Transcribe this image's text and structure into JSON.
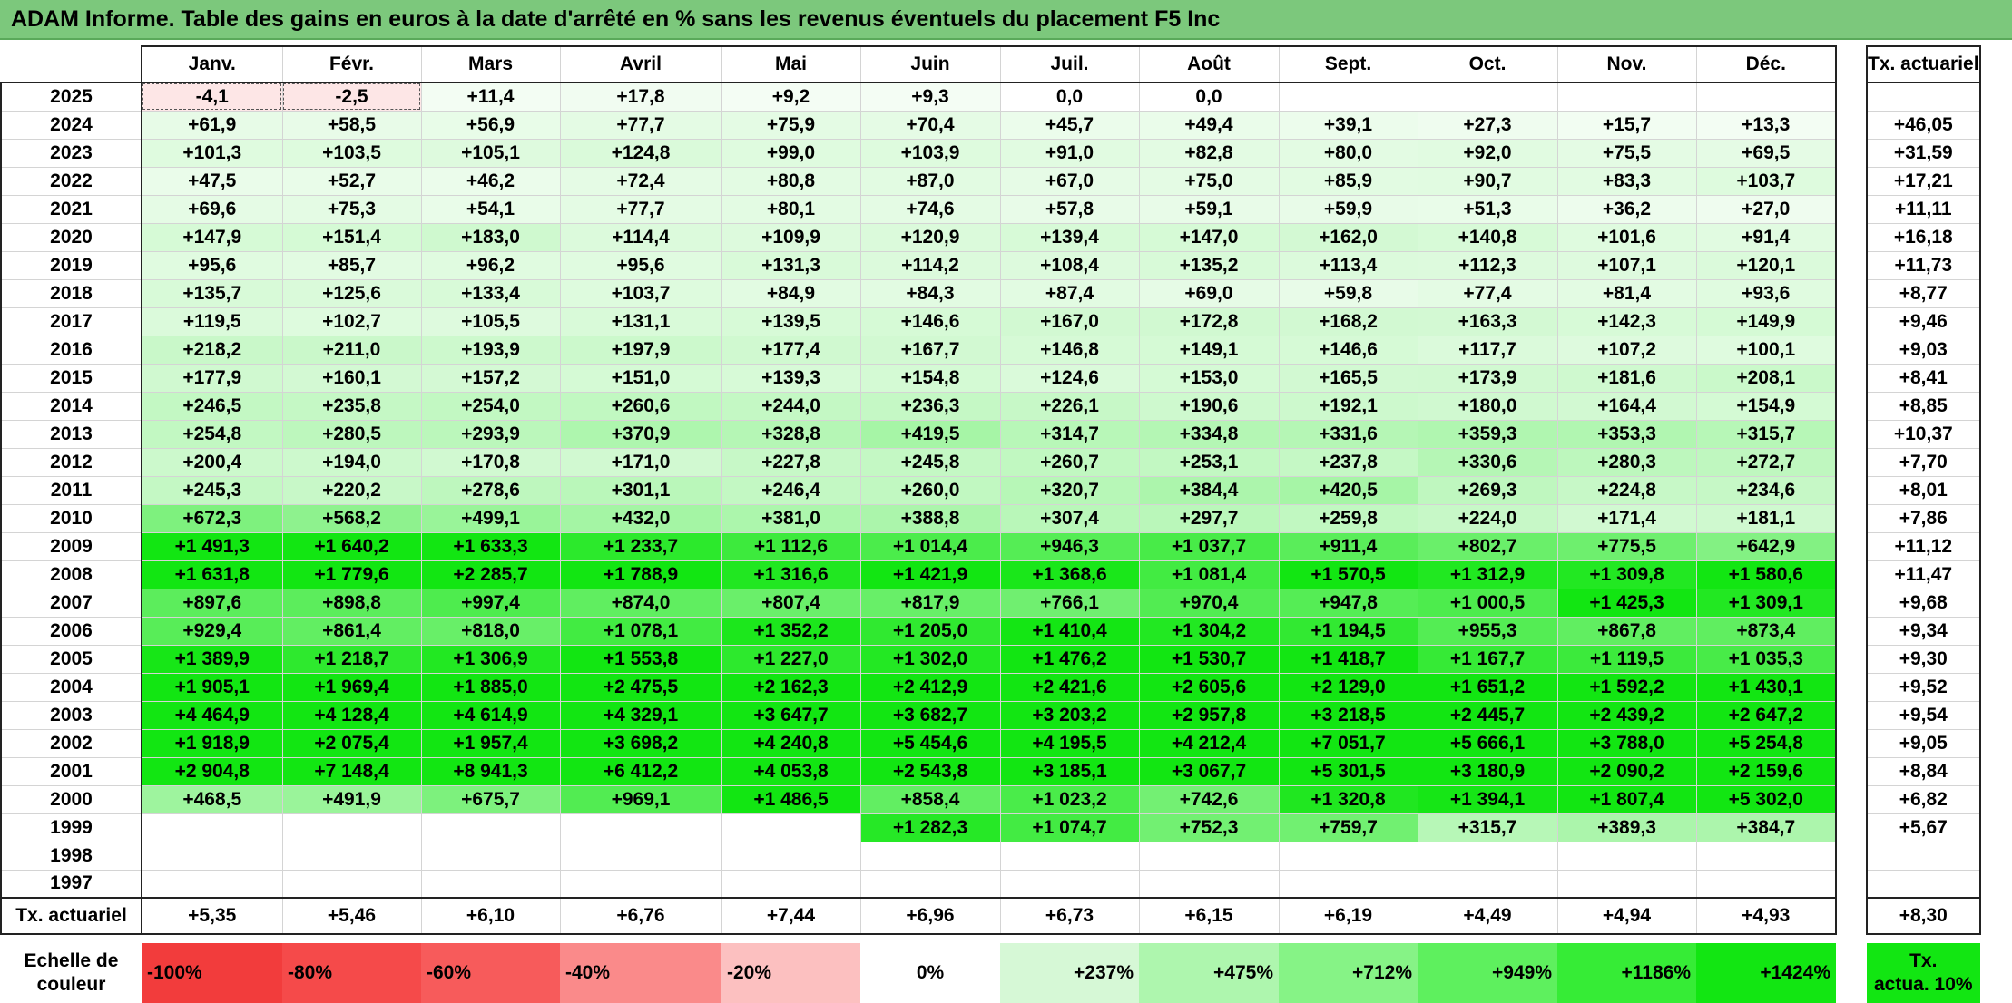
{
  "title": "ADAM Informe. Table des gains en euros à la date d'arrêté en % sans les revenus éventuels du placement F5 Inc",
  "months": [
    "Janv.",
    "Févr.",
    "Mars",
    "Avril",
    "Mai",
    "Juin",
    "Juil.",
    "Août",
    "Sept.",
    "Oct.",
    "Nov.",
    "Déc."
  ],
  "annual_header": "Tx. actuariel",
  "rows": [
    {
      "year": "2025",
      "values": [
        "-4,1",
        "-2,5",
        "+11,4",
        "+17,8",
        "+9,2",
        "+9,3",
        "0,0",
        "0,0",
        "",
        "",
        "",
        ""
      ],
      "annual": ""
    },
    {
      "year": "2024",
      "values": [
        "+61,9",
        "+58,5",
        "+56,9",
        "+77,7",
        "+75,9",
        "+70,4",
        "+45,7",
        "+49,4",
        "+39,1",
        "+27,3",
        "+15,7",
        "+13,3"
      ],
      "annual": "+46,05"
    },
    {
      "year": "2023",
      "values": [
        "+101,3",
        "+103,5",
        "+105,1",
        "+124,8",
        "+99,0",
        "+103,9",
        "+91,0",
        "+82,8",
        "+80,0",
        "+92,0",
        "+75,5",
        "+69,5"
      ],
      "annual": "+31,59"
    },
    {
      "year": "2022",
      "values": [
        "+47,5",
        "+52,7",
        "+46,2",
        "+72,4",
        "+80,8",
        "+87,0",
        "+67,0",
        "+75,0",
        "+85,9",
        "+90,7",
        "+83,3",
        "+103,7"
      ],
      "annual": "+17,21"
    },
    {
      "year": "2021",
      "values": [
        "+69,6",
        "+75,3",
        "+54,1",
        "+77,7",
        "+80,1",
        "+74,6",
        "+57,8",
        "+59,1",
        "+59,9",
        "+51,3",
        "+36,2",
        "+27,0"
      ],
      "annual": "+11,11"
    },
    {
      "year": "2020",
      "values": [
        "+147,9",
        "+151,4",
        "+183,0",
        "+114,4",
        "+109,9",
        "+120,9",
        "+139,4",
        "+147,0",
        "+162,0",
        "+140,8",
        "+101,6",
        "+91,4"
      ],
      "annual": "+16,18"
    },
    {
      "year": "2019",
      "values": [
        "+95,6",
        "+85,7",
        "+96,2",
        "+95,6",
        "+131,3",
        "+114,2",
        "+108,4",
        "+135,2",
        "+113,4",
        "+112,3",
        "+107,1",
        "+120,1"
      ],
      "annual": "+11,73"
    },
    {
      "year": "2018",
      "values": [
        "+135,7",
        "+125,6",
        "+133,4",
        "+103,7",
        "+84,9",
        "+84,3",
        "+87,4",
        "+69,0",
        "+59,8",
        "+77,4",
        "+81,4",
        "+93,6"
      ],
      "annual": "+8,77"
    },
    {
      "year": "2017",
      "values": [
        "+119,5",
        "+102,7",
        "+105,5",
        "+131,1",
        "+139,5",
        "+146,6",
        "+167,0",
        "+172,8",
        "+168,2",
        "+163,3",
        "+142,3",
        "+149,9"
      ],
      "annual": "+9,46"
    },
    {
      "year": "2016",
      "values": [
        "+218,2",
        "+211,0",
        "+193,9",
        "+197,9",
        "+177,4",
        "+167,7",
        "+146,8",
        "+149,1",
        "+146,6",
        "+117,7",
        "+107,2",
        "+100,1"
      ],
      "annual": "+9,03"
    },
    {
      "year": "2015",
      "values": [
        "+177,9",
        "+160,1",
        "+157,2",
        "+151,0",
        "+139,3",
        "+154,8",
        "+124,6",
        "+153,0",
        "+165,5",
        "+173,9",
        "+181,6",
        "+208,1"
      ],
      "annual": "+8,41"
    },
    {
      "year": "2014",
      "values": [
        "+246,5",
        "+235,8",
        "+254,0",
        "+260,6",
        "+244,0",
        "+236,3",
        "+226,1",
        "+190,6",
        "+192,1",
        "+180,0",
        "+164,4",
        "+154,9"
      ],
      "annual": "+8,85"
    },
    {
      "year": "2013",
      "values": [
        "+254,8",
        "+280,5",
        "+293,9",
        "+370,9",
        "+328,8",
        "+419,5",
        "+314,7",
        "+334,8",
        "+331,6",
        "+359,3",
        "+353,3",
        "+315,7"
      ],
      "annual": "+10,37"
    },
    {
      "year": "2012",
      "values": [
        "+200,4",
        "+194,0",
        "+170,8",
        "+171,0",
        "+227,8",
        "+245,8",
        "+260,7",
        "+253,1",
        "+237,8",
        "+330,6",
        "+280,3",
        "+272,7"
      ],
      "annual": "+7,70"
    },
    {
      "year": "2011",
      "values": [
        "+245,3",
        "+220,2",
        "+278,6",
        "+301,1",
        "+246,4",
        "+260,0",
        "+320,7",
        "+384,4",
        "+420,5",
        "+269,3",
        "+224,8",
        "+234,6"
      ],
      "annual": "+8,01"
    },
    {
      "year": "2010",
      "values": [
        "+672,3",
        "+568,2",
        "+499,1",
        "+432,0",
        "+381,0",
        "+388,8",
        "+307,4",
        "+297,7",
        "+259,8",
        "+224,0",
        "+171,4",
        "+181,1"
      ],
      "annual": "+7,86"
    },
    {
      "year": "2009",
      "values": [
        "+1 491,3",
        "+1 640,2",
        "+1 633,3",
        "+1 233,7",
        "+1 112,6",
        "+1 014,4",
        "+946,3",
        "+1 037,7",
        "+911,4",
        "+802,7",
        "+775,5",
        "+642,9"
      ],
      "annual": "+11,12"
    },
    {
      "year": "2008",
      "values": [
        "+1 631,8",
        "+1 779,6",
        "+2 285,7",
        "+1 788,9",
        "+1 316,6",
        "+1 421,9",
        "+1 368,6",
        "+1 081,4",
        "+1 570,5",
        "+1 312,9",
        "+1 309,8",
        "+1 580,6"
      ],
      "annual": "+11,47"
    },
    {
      "year": "2007",
      "values": [
        "+897,6",
        "+898,8",
        "+997,4",
        "+874,0",
        "+807,4",
        "+817,9",
        "+766,1",
        "+970,4",
        "+947,8",
        "+1 000,5",
        "+1 425,3",
        "+1 309,1"
      ],
      "annual": "+9,68"
    },
    {
      "year": "2006",
      "values": [
        "+929,4",
        "+861,4",
        "+818,0",
        "+1 078,1",
        "+1 352,2",
        "+1 205,0",
        "+1 410,4",
        "+1 304,2",
        "+1 194,5",
        "+955,3",
        "+867,8",
        "+873,4"
      ],
      "annual": "+9,34"
    },
    {
      "year": "2005",
      "values": [
        "+1 389,9",
        "+1 218,7",
        "+1 306,9",
        "+1 553,8",
        "+1 227,0",
        "+1 302,0",
        "+1 476,2",
        "+1 530,7",
        "+1 418,7",
        "+1 167,7",
        "+1 119,5",
        "+1 035,3"
      ],
      "annual": "+9,30"
    },
    {
      "year": "2004",
      "values": [
        "+1 905,1",
        "+1 969,4",
        "+1 885,0",
        "+2 475,5",
        "+2 162,3",
        "+2 412,9",
        "+2 421,6",
        "+2 605,6",
        "+2 129,0",
        "+1 651,2",
        "+1 592,2",
        "+1 430,1"
      ],
      "annual": "+9,52"
    },
    {
      "year": "2003",
      "values": [
        "+4 464,9",
        "+4 128,4",
        "+4 614,9",
        "+4 329,1",
        "+3 647,7",
        "+3 682,7",
        "+3 203,2",
        "+2 957,8",
        "+3 218,5",
        "+2 445,7",
        "+2 439,2",
        "+2 647,2"
      ],
      "annual": "+9,54"
    },
    {
      "year": "2002",
      "values": [
        "+1 918,9",
        "+2 075,4",
        "+1 957,4",
        "+3 698,2",
        "+4 240,8",
        "+5 454,6",
        "+4 195,5",
        "+4 212,4",
        "+7 051,7",
        "+5 666,1",
        "+3 788,0",
        "+5 254,8"
      ],
      "annual": "+9,05"
    },
    {
      "year": "2001",
      "values": [
        "+2 904,8",
        "+7 148,4",
        "+8 941,3",
        "+6 412,2",
        "+4 053,8",
        "+2 543,8",
        "+3 185,1",
        "+3 067,7",
        "+5 301,5",
        "+3 180,9",
        "+2 090,2",
        "+2 159,6"
      ],
      "annual": "+8,84"
    },
    {
      "year": "2000",
      "values": [
        "+468,5",
        "+491,9",
        "+675,7",
        "+969,1",
        "+1 486,5",
        "+858,4",
        "+1 023,2",
        "+742,6",
        "+1 320,8",
        "+1 394,1",
        "+1 807,4",
        "+5 302,0"
      ],
      "annual": "+6,82"
    },
    {
      "year": "1999",
      "values": [
        "",
        "",
        "",
        "",
        "",
        "+1 282,3",
        "+1 074,7",
        "+752,3",
        "+759,7",
        "+315,7",
        "+389,3",
        "+384,7"
      ],
      "annual": "+5,67"
    },
    {
      "year": "1998",
      "values": [
        "",
        "",
        "",
        "",
        "",
        "",
        "",
        "",
        "",
        "",
        "",
        ""
      ],
      "annual": ""
    },
    {
      "year": "1997",
      "values": [
        "",
        "",
        "",
        "",
        "",
        "",
        "",
        "",
        "",
        "",
        "",
        ""
      ],
      "annual": ""
    }
  ],
  "summary": {
    "label": "Tx. actuariel",
    "values": [
      "+5,35",
      "+5,46",
      "+6,10",
      "+6,76",
      "+7,44",
      "+6,96",
      "+6,73",
      "+6,15",
      "+6,19",
      "+4,49",
      "+4,94",
      "+4,93"
    ],
    "annual": "+8,30"
  },
  "scale": {
    "label_line1": "Echelle de",
    "label_line2": "couleur",
    "items": [
      {
        "text": "-100%",
        "color": "#f23c3c",
        "align": "left"
      },
      {
        "text": "-80%",
        "color": "#f54a4a",
        "align": "left"
      },
      {
        "text": "-60%",
        "color": "#f75b5b",
        "align": "left"
      },
      {
        "text": "-40%",
        "color": "#fa8a8a",
        "align": "left"
      },
      {
        "text": "-20%",
        "color": "#fcc0c0",
        "align": "left"
      },
      {
        "text": "0%",
        "color": "#ffffff",
        "align": "center"
      },
      {
        "text": "+237%",
        "color": "#d6f8d6",
        "align": "right"
      },
      {
        "text": "+475%",
        "color": "#aef6ae",
        "align": "right"
      },
      {
        "text": "+712%",
        "color": "#86f386",
        "align": "right"
      },
      {
        "text": "+949%",
        "color": "#5ef05e",
        "align": "right"
      },
      {
        "text": "+1186%",
        "color": "#36ec36",
        "align": "right"
      },
      {
        "text": "+1424%",
        "color": "#12e612",
        "align": "right"
      }
    ],
    "tx_line1": "Tx.",
    "tx_line2": "actua. 10%",
    "tx_color": "#12e612"
  },
  "colors": {
    "title_bg": "#7cc87c",
    "cell_max_green": "#12e612",
    "cell_neg": "#fde6e6"
  }
}
